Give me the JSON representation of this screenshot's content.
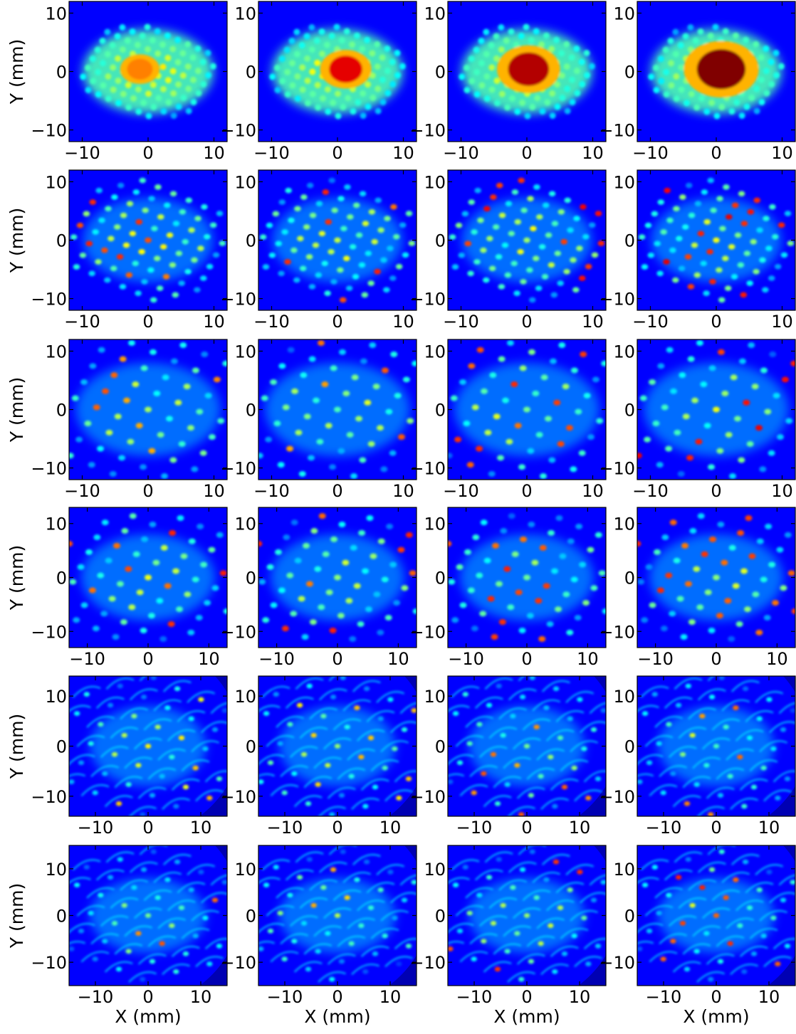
{
  "colors": {
    "colormap": "jet",
    "background_low": "#000080",
    "low": "#0000ff",
    "mid_low": "#00ffff",
    "mid_high": "#ffff00",
    "high": "#ff0000",
    "frame": "#000000"
  },
  "chart_data": {
    "type": "heatmap",
    "layout": {
      "rows": 6,
      "cols": 4
    },
    "colormap": "jet",
    "xlabel": "X (mm)",
    "ylabel": "Y (mm)",
    "panels_by_row": [
      {
        "xlim": [
          -12,
          12
        ],
        "ylim": [
          -12,
          12
        ],
        "xticks": [
          -10,
          0,
          10
        ],
        "yticks": [
          -10,
          0,
          10
        ],
        "xtick_labels": [
          "−10",
          "0",
          "10"
        ],
        "ytick_labels": [
          "−10",
          "0",
          "10"
        ],
        "spot_pattern": "central_blob",
        "peak_intensity_by_column": [
          0.75,
          0.9,
          0.95,
          1.0
        ]
      },
      {
        "xlim": [
          -12,
          12
        ],
        "ylim": [
          -12,
          12
        ],
        "xticks": [
          -10,
          0,
          10
        ],
        "yticks": [
          -10,
          0,
          10
        ],
        "xtick_labels": [
          "−10",
          "0",
          "10"
        ],
        "ytick_labels": [
          "−10",
          "0",
          "10"
        ],
        "spot_pattern": "dense_grid",
        "peak_intensity_by_column": [
          0.85,
          0.85,
          0.9,
          0.9
        ]
      },
      {
        "xlim": [
          -12,
          12
        ],
        "ylim": [
          -12,
          12
        ],
        "xticks": [
          -10,
          0,
          10
        ],
        "yticks": [
          -10,
          0,
          10
        ],
        "xtick_labels": [
          "−10",
          "0",
          "10"
        ],
        "ytick_labels": [
          "−10",
          "0",
          "10"
        ],
        "spot_pattern": "regular_grid",
        "peak_intensity_by_column": [
          0.8,
          0.8,
          0.85,
          0.9
        ]
      },
      {
        "xlim": [
          -13,
          13
        ],
        "ylim": [
          -13,
          13
        ],
        "xticks": [
          -10,
          0,
          10
        ],
        "yticks": [
          -10,
          0,
          10
        ],
        "xtick_labels": [
          "−10",
          "0",
          "10"
        ],
        "ytick_labels": [
          "−10",
          "0",
          "10"
        ],
        "spot_pattern": "regular_grid",
        "peak_intensity_by_column": [
          0.85,
          0.85,
          0.85,
          0.85
        ]
      },
      {
        "xlim": [
          -15,
          15
        ],
        "ylim": [
          -14,
          14
        ],
        "xticks": [
          -10,
          0,
          10
        ],
        "yticks": [
          -10,
          0,
          10
        ],
        "xtick_labels": [
          "−10",
          "0",
          "10"
        ],
        "ytick_labels": [
          "−10",
          "0",
          "10"
        ],
        "spot_pattern": "sparse_arcs",
        "peak_intensity_by_column": [
          0.7,
          0.7,
          0.8,
          0.8
        ]
      },
      {
        "xlim": [
          -15,
          15
        ],
        "ylim": [
          -15,
          15
        ],
        "xticks": [
          -10,
          0,
          10
        ],
        "yticks": [
          -10,
          0,
          10
        ],
        "xtick_labels": [
          "−10",
          "0",
          "10"
        ],
        "ytick_labels": [
          "−10",
          "0",
          "10"
        ],
        "spot_pattern": "arcs",
        "peak_intensity_by_column": [
          0.8,
          0.75,
          0.85,
          0.85
        ]
      }
    ]
  }
}
